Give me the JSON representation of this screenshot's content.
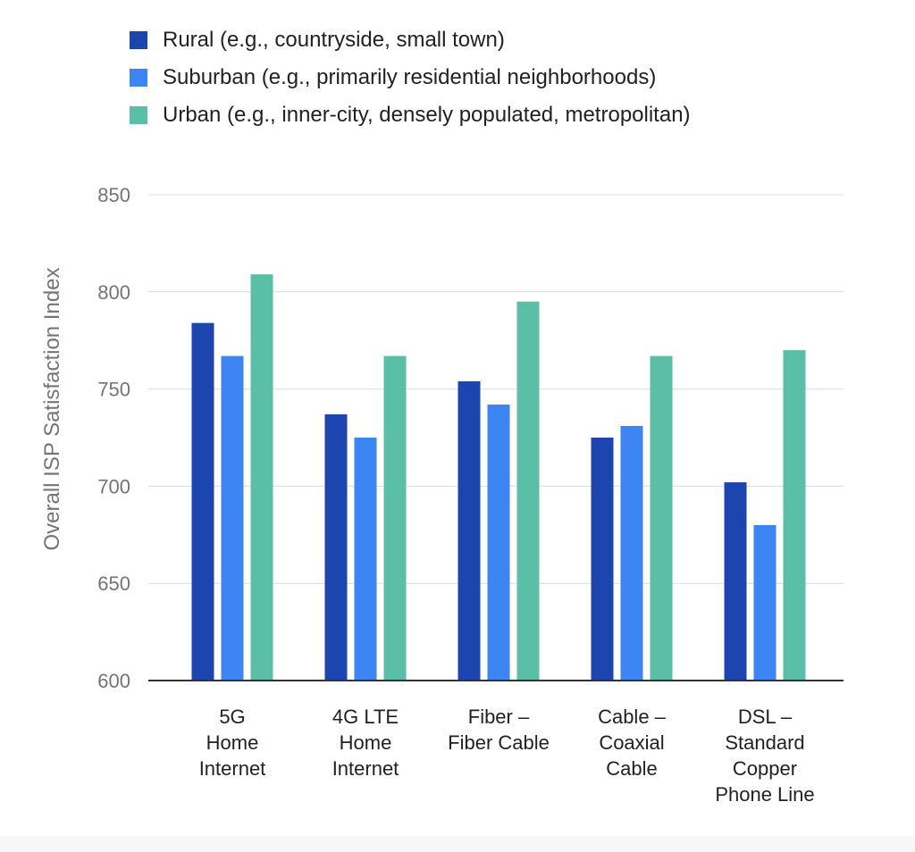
{
  "chart_data": {
    "type": "bar",
    "title": "",
    "xlabel": "",
    "ylabel": "Overall ISP Satisfaction Index",
    "ylim": [
      600,
      850
    ],
    "yticks": [
      600,
      650,
      700,
      750,
      800,
      850
    ],
    "grid": true,
    "legend_position": "top",
    "categories": [
      [
        "5G",
        "Home",
        "Internet"
      ],
      [
        "4G LTE",
        "Home",
        "Internet"
      ],
      [
        "Fiber –",
        "Fiber Cable"
      ],
      [
        "Cable –",
        "Coaxial",
        "Cable"
      ],
      [
        "DSL –",
        "Standard",
        "Copper",
        "Phone Line"
      ]
    ],
    "series": [
      {
        "name": "Rural (e.g., countryside, small town)",
        "color": "#1c45b0",
        "values": [
          784,
          737,
          754,
          725,
          702
        ]
      },
      {
        "name": "Suburban (e.g., primarily residential neighborhoods)",
        "color": "#3d85f2",
        "values": [
          767,
          725,
          742,
          731,
          680
        ]
      },
      {
        "name": "Urban (e.g., inner-city, densely populated, metropolitan)",
        "color": "#5bbfa7",
        "values": [
          809,
          767,
          795,
          767,
          770
        ]
      }
    ]
  }
}
